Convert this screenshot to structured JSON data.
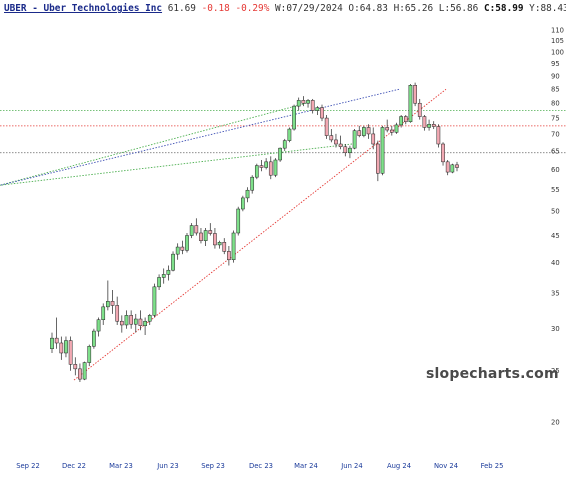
{
  "header": {
    "symbol_title": "UBER - Uber Technologies Inc",
    "last": "61.69",
    "change": "-0.18",
    "change_pct": "-0.29%",
    "week_label": "W:",
    "week_date": "07/29/2024",
    "open_label": "O:",
    "open": "64.83",
    "high_label": "H:",
    "high": "65.26",
    "low_label": "L:",
    "low": "56.86",
    "close_label": "C:",
    "close": "58.99",
    "y_label": "Y:",
    "y_value": "88.43"
  },
  "watermark": "slopecharts.com",
  "chart_data": {
    "type": "candlestick",
    "scale": "log",
    "ylim": [
      17,
      112
    ],
    "y_ticks": [
      20,
      25,
      30,
      35,
      40,
      45,
      50,
      55,
      60,
      65,
      70,
      75,
      80,
      85,
      90,
      95,
      100,
      105,
      110
    ],
    "x_ticks": [
      "Sep 22",
      "Dec 22",
      "Mar 23",
      "Jun 23",
      "Sep 23",
      "Dec 23",
      "Mar 24",
      "Jun 24",
      "Aug 24",
      "Nov 24",
      "Feb 25"
    ],
    "horizontal_lines": [
      {
        "value": 77.5,
        "color": "#4caf50",
        "style": "dotted"
      },
      {
        "value": 72.5,
        "color": "#e53935",
        "style": "dotted"
      },
      {
        "value": 64.5,
        "color": "#666666",
        "style": "dotted"
      }
    ],
    "trend_lines": [
      {
        "from": [
          "Dec 22",
          24
        ],
        "to": [
          "Nov 24",
          85
        ],
        "color": "#e53935"
      },
      {
        "from": [
          "Mar 24",
          80
        ],
        "to": [
          "Dec 24",
          56
        ],
        "color": "#4caf50"
      },
      {
        "from": [
          "Jun 24",
          67
        ],
        "to": [
          "Dec 24",
          56
        ],
        "color": "#4caf50"
      },
      {
        "from": [
          "Aug 24",
          85
        ],
        "to": [
          "Dec 24",
          56
        ],
        "color": "#3f51b5"
      }
    ],
    "candles": [
      [
        27.5,
        29.5,
        27.0,
        28.8
      ],
      [
        28.8,
        31.5,
        27.5,
        28.2
      ],
      [
        28.2,
        29.0,
        26.2,
        27.0
      ],
      [
        27.0,
        29.0,
        26.5,
        28.5
      ],
      [
        28.5,
        29.0,
        25.0,
        25.7
      ],
      [
        25.7,
        26.5,
        24.5,
        25.2
      ],
      [
        25.2,
        25.8,
        23.8,
        24.1
      ],
      [
        24.1,
        26.0,
        24.0,
        25.9
      ],
      [
        25.9,
        28.0,
        25.5,
        27.8
      ],
      [
        27.8,
        30.0,
        27.5,
        29.7
      ],
      [
        29.7,
        31.5,
        29.0,
        31.2
      ],
      [
        31.2,
        33.5,
        30.5,
        33.0
      ],
      [
        33.0,
        37.0,
        32.5,
        33.8
      ],
      [
        33.8,
        35.5,
        32.0,
        33.2
      ],
      [
        33.2,
        34.5,
        30.5,
        31.0
      ],
      [
        31.0,
        31.8,
        29.5,
        30.5
      ],
      [
        30.5,
        32.5,
        30.0,
        31.8
      ],
      [
        31.8,
        32.5,
        30.0,
        30.6
      ],
      [
        30.6,
        32.0,
        29.5,
        31.3
      ],
      [
        31.3,
        32.5,
        29.8,
        30.4
      ],
      [
        30.4,
        31.5,
        29.2,
        31.0
      ],
      [
        31.0,
        32.0,
        30.5,
        31.8
      ],
      [
        31.8,
        36.5,
        31.5,
        36.0
      ],
      [
        36.0,
        38.0,
        35.5,
        37.5
      ],
      [
        37.5,
        39.0,
        36.5,
        38.0
      ],
      [
        38.0,
        39.5,
        37.0,
        38.7
      ],
      [
        38.7,
        42.0,
        38.5,
        41.5
      ],
      [
        41.5,
        43.5,
        40.5,
        42.8
      ],
      [
        42.8,
        44.0,
        41.5,
        42.2
      ],
      [
        42.2,
        45.5,
        41.8,
        45.0
      ],
      [
        45.0,
        47.5,
        44.5,
        47.0
      ],
      [
        47.0,
        48.5,
        45.0,
        45.5
      ],
      [
        45.5,
        46.5,
        43.5,
        44.0
      ],
      [
        44.0,
        46.5,
        43.0,
        46.0
      ],
      [
        46.0,
        47.5,
        45.0,
        45.4
      ],
      [
        45.4,
        46.5,
        42.5,
        43.2
      ],
      [
        43.2,
        44.0,
        42.5,
        43.7
      ],
      [
        43.7,
        44.5,
        41.5,
        42.0
      ],
      [
        42.0,
        43.0,
        39.5,
        40.5
      ],
      [
        40.5,
        46.0,
        40.0,
        45.5
      ],
      [
        45.5,
        51.0,
        45.0,
        50.5
      ],
      [
        50.5,
        53.5,
        50.0,
        53.0
      ],
      [
        53.0,
        55.5,
        52.0,
        54.8
      ],
      [
        54.8,
        58.5,
        54.0,
        58.0
      ],
      [
        58.0,
        61.5,
        57.5,
        61.0
      ],
      [
        61.0,
        62.5,
        59.5,
        60.5
      ],
      [
        60.5,
        63.0,
        60.0,
        62.0
      ],
      [
        62.0,
        63.5,
        57.5,
        58.5
      ],
      [
        58.5,
        63.0,
        58.0,
        62.5
      ],
      [
        62.5,
        66.0,
        62.0,
        65.8
      ],
      [
        65.8,
        68.5,
        65.0,
        68.0
      ],
      [
        68.0,
        72.0,
        67.5,
        71.5
      ],
      [
        71.5,
        79.5,
        71.0,
        79.0
      ],
      [
        79.0,
        82.0,
        77.5,
        81.0
      ],
      [
        81.0,
        82.5,
        79.0,
        80.0
      ],
      [
        80.0,
        81.5,
        78.5,
        81.0
      ],
      [
        81.0,
        81.5,
        76.5,
        77.5
      ],
      [
        77.5,
        79.0,
        76.0,
        78.5
      ],
      [
        78.5,
        79.5,
        74.0,
        75.0
      ],
      [
        75.0,
        76.0,
        68.5,
        69.5
      ],
      [
        69.5,
        71.5,
        67.5,
        68.2
      ],
      [
        68.2,
        70.0,
        66.0,
        67.0
      ],
      [
        67.0,
        69.5,
        65.5,
        66.2
      ],
      [
        66.2,
        67.0,
        63.5,
        64.5
      ],
      [
        64.5,
        66.5,
        63.0,
        65.8
      ],
      [
        65.8,
        71.5,
        65.5,
        71.0
      ],
      [
        71.0,
        72.5,
        69.0,
        69.5
      ],
      [
        69.5,
        72.5,
        69.0,
        72.0
      ],
      [
        72.0,
        73.0,
        68.5,
        70.0
      ],
      [
        70.0,
        72.0,
        65.5,
        67.0
      ],
      [
        67.0,
        68.0,
        57.0,
        59.0
      ],
      [
        59.0,
        72.5,
        58.5,
        72.0
      ],
      [
        72.0,
        74.5,
        70.5,
        71.2
      ],
      [
        71.2,
        72.5,
        69.5,
        70.5
      ],
      [
        70.5,
        73.5,
        70.0,
        72.8
      ],
      [
        72.8,
        76.0,
        72.0,
        75.5
      ],
      [
        75.5,
        76.0,
        73.0,
        73.8
      ],
      [
        73.8,
        87.0,
        73.5,
        86.5
      ],
      [
        86.5,
        87.5,
        79.0,
        80.0
      ],
      [
        80.0,
        81.5,
        74.5,
        75.5
      ],
      [
        75.5,
        76.0,
        71.0,
        72.0
      ],
      [
        72.0,
        74.5,
        71.0,
        73.0
      ],
      [
        73.0,
        74.0,
        71.5,
        72.3
      ],
      [
        72.3,
        73.0,
        66.0,
        67.0
      ],
      [
        67.0,
        67.5,
        61.0,
        62.0
      ],
      [
        62.0,
        62.5,
        58.5,
        59.3
      ],
      [
        59.3,
        61.5,
        59.0,
        61.2
      ],
      [
        61.2,
        62.0,
        59.5,
        60.5
      ]
    ]
  }
}
